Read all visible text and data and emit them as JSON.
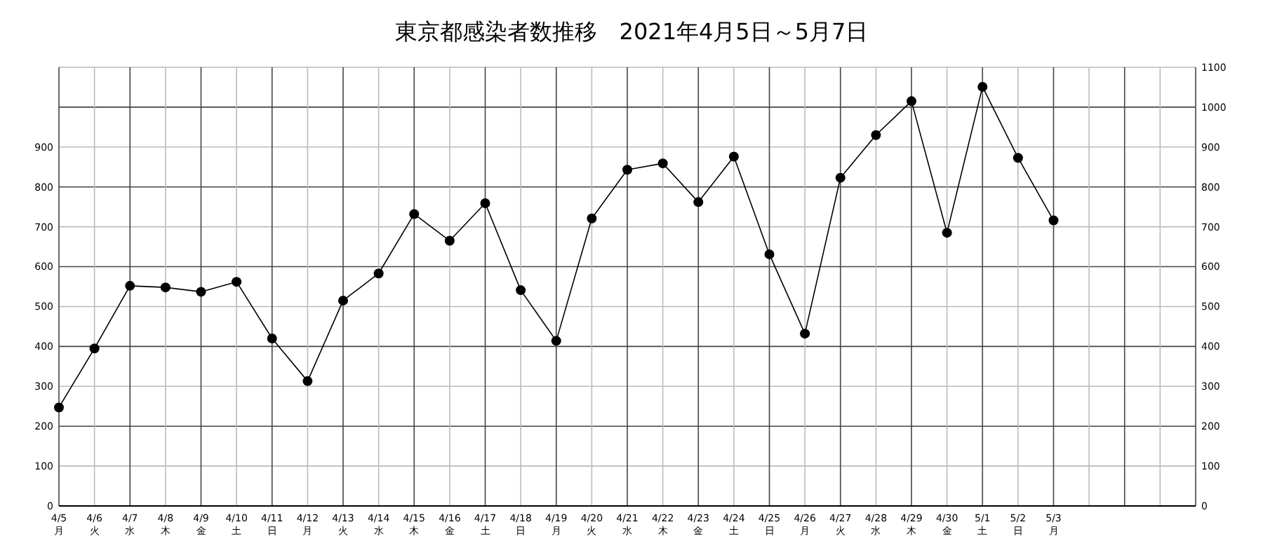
{
  "chart_data": {
    "type": "line",
    "title": "東京都感染者数推移　2021年4月5日～5月7日",
    "categories": [
      "4/5\n月",
      "4/6\n火",
      "4/7\n水",
      "4/8\n木",
      "4/9\n金",
      "4/10\n土",
      "4/11\n日",
      "4/12\n月",
      "4/13\n火",
      "4/14\n水",
      "4/15\n木",
      "4/16\n金",
      "4/17\n土",
      "4/18\n日",
      "4/19\n月",
      "4/20\n火",
      "4/21\n水",
      "4/22\n木",
      "4/23\n金",
      "4/24\n土",
      "4/25\n日",
      "4/26\n月",
      "4/27\n火",
      "4/28\n水",
      "4/29\n木",
      "4/30\n金",
      "5/1\n土",
      "5/2\n日",
      "5/3\n月",
      null,
      null,
      null,
      null
    ],
    "series": [
      {
        "color": "#000000",
        "values": [
          247,
          395,
          552,
          548,
          537,
          562,
          420,
          313,
          515,
          583,
          732,
          665,
          759,
          541,
          414,
          721,
          843,
          859,
          762,
          876,
          631,
          432,
          823,
          930,
          1015,
          685,
          1051,
          873,
          716,
          null,
          null,
          null,
          null
        ]
      }
    ],
    "ylim": [
      0,
      1100
    ],
    "yticks": [
      0,
      100,
      200,
      300,
      400,
      500,
      600,
      700,
      800,
      900
    ],
    "y2lim": [
      0,
      1100
    ],
    "y2ticks": [
      0,
      100,
      200,
      300,
      400,
      500,
      600,
      700,
      800,
      900,
      1000,
      1100
    ],
    "grid": true,
    "marker": "circle",
    "line_style": "solid"
  }
}
